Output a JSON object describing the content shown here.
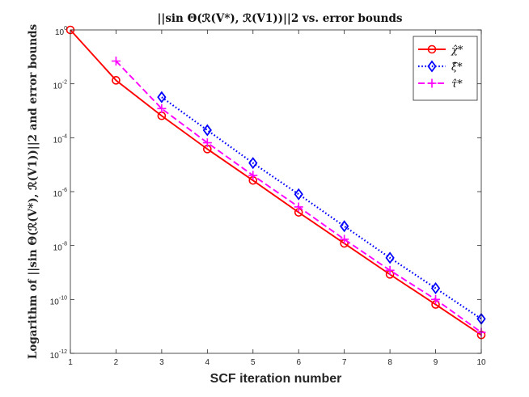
{
  "chart_data": {
    "type": "line",
    "title": "||sin Θ(ℛ(V*), ℛ(V1))||2 vs. error bounds",
    "xlabel": "SCF iteration number",
    "ylabel": "Logarithm of ||sin Θ(ℛ(V*), ℛ(V1))||2 and error bounds",
    "yscale": "log",
    "xlim": [
      1,
      10
    ],
    "ylim": [
      1e-12,
      1
    ],
    "xticks": [
      "1",
      "2",
      "3",
      "4",
      "5",
      "6",
      "7",
      "8",
      "9",
      "10"
    ],
    "yticks": [
      {
        "base": "10",
        "exp": "0"
      },
      {
        "base": "10",
        "exp": "-2"
      },
      {
        "base": "10",
        "exp": "-4"
      },
      {
        "base": "10",
        "exp": "-6"
      },
      {
        "base": "10",
        "exp": "-8"
      },
      {
        "base": "10",
        "exp": "-10"
      },
      {
        "base": "10",
        "exp": "-12"
      }
    ],
    "legend_position": "top-right",
    "series": [
      {
        "name": "χ̂*",
        "color": "#ff0000",
        "style": "solid",
        "marker": "circle",
        "x": [
          1,
          2,
          3,
          4,
          5,
          6,
          7,
          8,
          9,
          10
        ],
        "values": [
          1.0,
          0.0135,
          0.00065,
          3.8e-05,
          2.6e-06,
          1.7e-07,
          1.2e-08,
          8.5e-10,
          6.5e-11,
          4.8e-12
        ]
      },
      {
        "name": "ξ̂*",
        "color": "#0000ff",
        "style": "dotted",
        "marker": "diamond",
        "x": [
          3,
          4,
          5,
          6,
          7,
          8,
          9,
          10
        ],
        "values": [
          0.0032,
          0.00019,
          1.15e-05,
          8e-07,
          5.2e-08,
          3.5e-09,
          2.6e-10,
          1.9e-11
        ]
      },
      {
        "name": "τ̂*",
        "color": "#ff00ff",
        "style": "dashed",
        "marker": "plus",
        "x": [
          2,
          3,
          4,
          5,
          6,
          7,
          8,
          9,
          10
        ],
        "values": [
          0.07,
          0.0012,
          6.5e-05,
          4e-06,
          2.7e-07,
          1.7e-08,
          1.2e-09,
          1e-10,
          6e-12
        ]
      }
    ]
  }
}
